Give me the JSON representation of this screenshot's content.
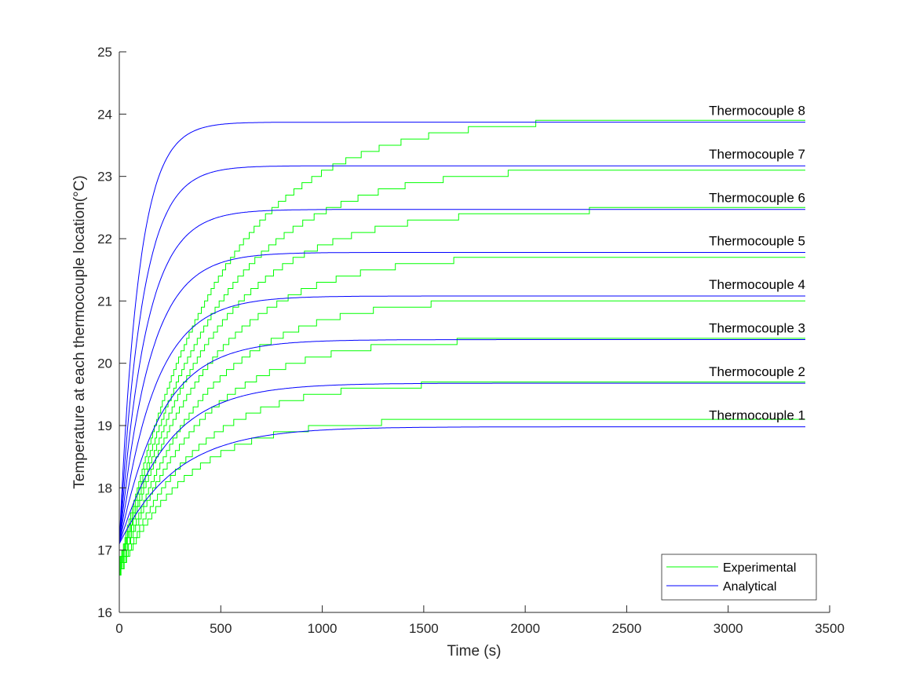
{
  "chart_data": {
    "type": "line",
    "title": "",
    "xlabel": "Time (s)",
    "ylabel": "Temperature at each thermocouple location(°C)",
    "xlim": [
      0,
      3500
    ],
    "ylim": [
      16,
      25
    ],
    "xticks": [
      0,
      500,
      1000,
      1500,
      2000,
      2500,
      3000,
      3500
    ],
    "yticks": [
      16,
      17,
      18,
      19,
      20,
      21,
      22,
      23,
      24,
      25
    ],
    "grid": false,
    "legend_position": "bottom-right",
    "legend": [
      {
        "label": "Experimental",
        "color": "#00ff00"
      },
      {
        "label": "Analytical",
        "color": "#0000ff"
      }
    ],
    "time_end": 3380,
    "series": [
      {
        "name": "Thermocouple 1",
        "analytical_start": 17.1,
        "analytical_final": 18.98,
        "analytical_tau": 280,
        "experimental_start": 16.6,
        "experimental_final": 19.1,
        "experimental_tau": 330
      },
      {
        "name": "Thermocouple 2",
        "analytical_start": 17.1,
        "analytical_final": 19.68,
        "analytical_tau": 240,
        "experimental_start": 16.6,
        "experimental_final": 19.7,
        "experimental_tau": 360
      },
      {
        "name": "Thermocouple 3",
        "analytical_start": 17.1,
        "analytical_final": 20.38,
        "analytical_tau": 205,
        "experimental_start": 16.65,
        "experimental_final": 20.4,
        "experimental_tau": 385
      },
      {
        "name": "Thermocouple 4",
        "analytical_start": 17.1,
        "analytical_final": 21.08,
        "analytical_tau": 175,
        "experimental_start": 16.65,
        "experimental_final": 21.05,
        "experimental_tau": 405
      },
      {
        "name": "Thermocouple 5",
        "analytical_start": 17.1,
        "analytical_final": 21.78,
        "analytical_tau": 150,
        "experimental_start": 16.7,
        "experimental_final": 21.75,
        "experimental_tau": 420
      },
      {
        "name": "Thermocouple 6",
        "analytical_start": 17.1,
        "analytical_final": 22.47,
        "analytical_tau": 130,
        "experimental_start": 16.7,
        "experimental_final": 22.48,
        "experimental_tau": 440
      },
      {
        "name": "Thermocouple 7",
        "analytical_start": 17.1,
        "analytical_final": 23.17,
        "analytical_tau": 112,
        "experimental_start": 16.75,
        "experimental_final": 23.15,
        "experimental_tau": 460
      },
      {
        "name": "Thermocouple 8",
        "analytical_start": 17.1,
        "analytical_final": 23.87,
        "analytical_tau": 95,
        "experimental_start": 16.8,
        "experimental_final": 23.95,
        "experimental_tau": 480
      }
    ]
  }
}
